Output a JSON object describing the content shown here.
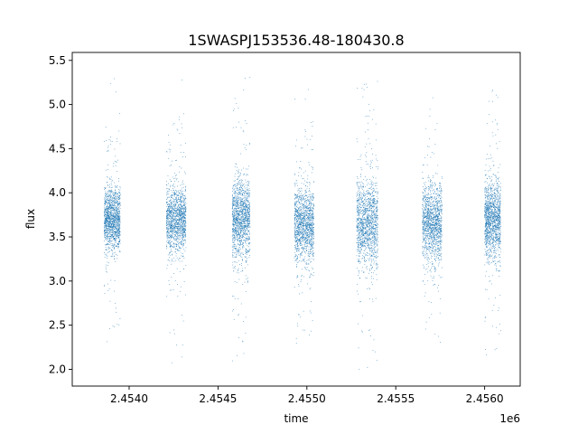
{
  "chart_data": {
    "type": "scatter",
    "title": "1SWASPJ153536.48-180430.8",
    "xlabel": "time",
    "ylabel": "flux",
    "x_offset_label": "1e6",
    "xlim": [
      2.45368,
      2.4562
    ],
    "ylim": [
      1.81,
      5.59
    ],
    "xticks": [
      2.454,
      2.4545,
      2.455,
      2.4555,
      2.456
    ],
    "xtick_labels": [
      "2.4540",
      "2.4545",
      "2.4550",
      "2.4555",
      "2.4560"
    ],
    "yticks": [
      2.0,
      2.5,
      3.0,
      3.5,
      4.0,
      4.5,
      5.0,
      5.5
    ],
    "ytick_labels": [
      "2.0",
      "2.5",
      "3.0",
      "3.5",
      "4.0",
      "4.5",
      "5.0",
      "5.5"
    ],
    "grid": false,
    "marker_color": "#1f77b4",
    "series": [
      {
        "segments": [
          {
            "x_start": 2.45386,
            "x_end": 2.45395,
            "y_center": 3.7,
            "y_core_spread": 0.3,
            "y_min": 2.05,
            "y_max": 5.45
          },
          {
            "x_start": 2.45421,
            "x_end": 2.45432,
            "y_center": 3.7,
            "y_core_spread": 0.3,
            "y_min": 2.05,
            "y_max": 5.4
          },
          {
            "x_start": 2.45458,
            "x_end": 2.45468,
            "y_center": 3.7,
            "y_core_spread": 0.35,
            "y_min": 2.05,
            "y_max": 5.35
          },
          {
            "x_start": 2.45493,
            "x_end": 2.45504,
            "y_center": 3.65,
            "y_core_spread": 0.35,
            "y_min": 2.2,
            "y_max": 5.35
          },
          {
            "x_start": 2.45528,
            "x_end": 2.4554,
            "y_center": 3.65,
            "y_core_spread": 0.4,
            "y_min": 1.98,
            "y_max": 5.35
          },
          {
            "x_start": 2.45565,
            "x_end": 2.45576,
            "y_center": 3.65,
            "y_core_spread": 0.35,
            "y_min": 2.3,
            "y_max": 5.35
          },
          {
            "x_start": 2.456,
            "x_end": 2.45609,
            "y_center": 3.7,
            "y_core_spread": 0.35,
            "y_min": 1.98,
            "y_max": 5.45
          }
        ]
      }
    ]
  }
}
